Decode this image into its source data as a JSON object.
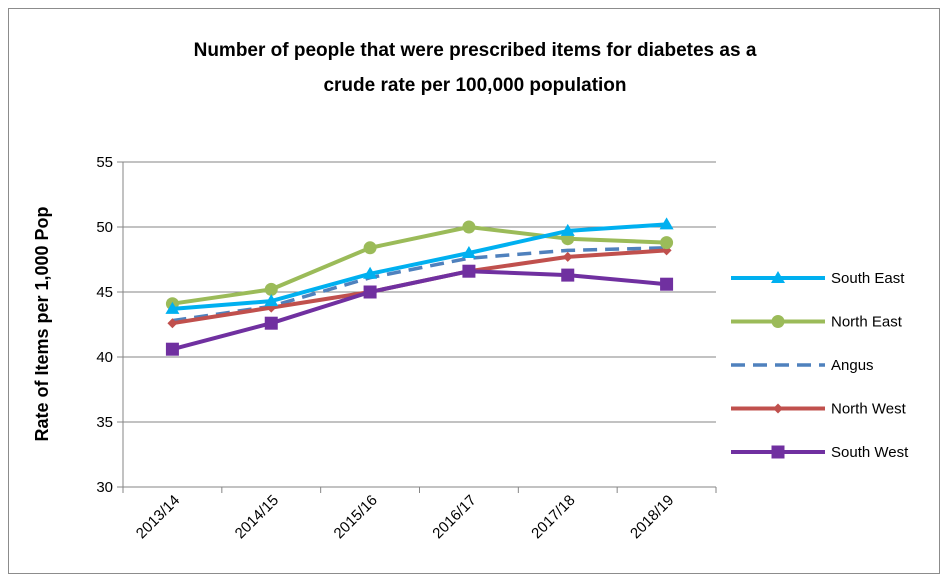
{
  "chart_data": {
    "type": "line",
    "title_lines": [
      "Number of people that were prescribed items for diabetes as a",
      "crude rate per 100,000 population"
    ],
    "xlabel": "",
    "ylabel": "Rate of Items per 1,000 Pop",
    "categories": [
      "2013/14",
      "2014/15",
      "2015/16",
      "2016/17",
      "2017/18",
      "2018/19"
    ],
    "ylim": [
      30,
      55
    ],
    "yticks": [
      30,
      35,
      40,
      45,
      50,
      55
    ],
    "grid": true,
    "legend_position": "right",
    "series": [
      {
        "name": "South East",
        "color": "#00b0f0",
        "marker": "triangle",
        "dash": false,
        "values": [
          43.7,
          44.3,
          46.4,
          48.0,
          49.7,
          50.2
        ]
      },
      {
        "name": "North East",
        "color": "#9bbb59",
        "marker": "circle",
        "dash": false,
        "values": [
          44.1,
          45.2,
          48.4,
          50.0,
          49.1,
          48.8
        ]
      },
      {
        "name": "Angus",
        "color": "#4f81bd",
        "marker": "none",
        "dash": true,
        "values": [
          42.8,
          43.9,
          46.1,
          47.6,
          48.2,
          48.4
        ]
      },
      {
        "name": "North West",
        "color": "#c0504d",
        "marker": "diamond",
        "dash": false,
        "values": [
          42.6,
          43.8,
          45.0,
          46.6,
          47.7,
          48.2
        ]
      },
      {
        "name": "South West",
        "color": "#7030a0",
        "marker": "square",
        "dash": false,
        "values": [
          40.6,
          42.6,
          45.0,
          46.6,
          46.3,
          45.6
        ]
      }
    ]
  }
}
